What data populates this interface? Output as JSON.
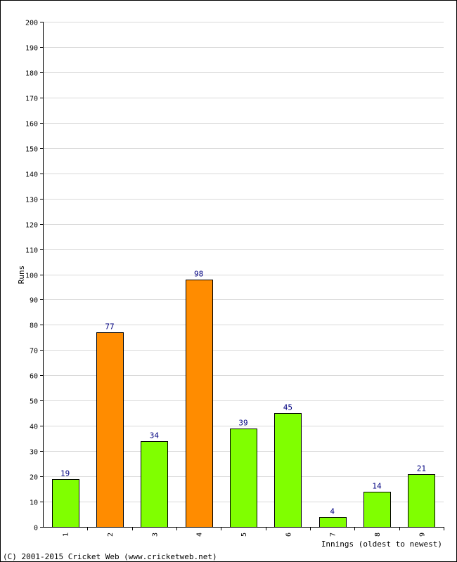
{
  "chart_data": {
    "type": "bar",
    "ylabel": "Runs",
    "xlabel": "Innings (oldest to newest)",
    "ylim": [
      0,
      200
    ],
    "ytick_step": 10,
    "grid": true,
    "categories": [
      "1",
      "2",
      "3",
      "4",
      "5",
      "6",
      "7",
      "8",
      "9"
    ],
    "values": [
      19,
      77,
      34,
      98,
      39,
      45,
      4,
      14,
      21
    ],
    "highlight": [
      false,
      true,
      false,
      true,
      false,
      false,
      false,
      false,
      false
    ],
    "colors": {
      "normal": "#80ff00",
      "highlight": "#ff8c00",
      "label": "#000080",
      "grid": "#d9d9d9"
    }
  },
  "footer": "(C) 2001-2015 Cricket Web (www.cricketweb.net)"
}
